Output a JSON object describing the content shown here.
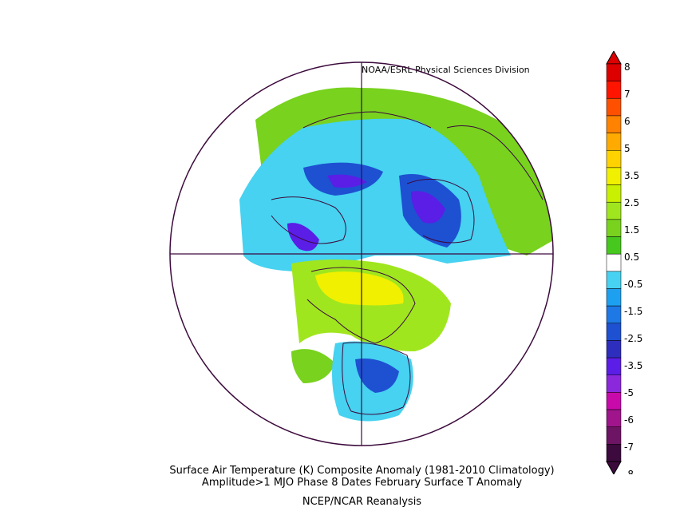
{
  "credit": "NOAA/ESRL Physical Sciences Division",
  "caption": {
    "line1": "Surface Air Temperature (K) Composite Anomaly (1981-2010 Climatology)",
    "line2": "Amplitude>1 MJO Phase 8 Dates February Surface T Anomaly",
    "line3": "NCEP/NCAR Reanalysis"
  },
  "colorbar": {
    "labels": [
      "8",
      "7",
      "6",
      "5",
      "3.5",
      "2.5",
      "1.5",
      "0.5",
      "-0.5",
      "-1.5",
      "-2.5",
      "-3.5",
      "-5",
      "-6",
      "-7",
      "-8"
    ],
    "colors": [
      "#3c0a3c",
      "#6e1464",
      "#a0148c",
      "#c80aaa",
      "#8c28dc",
      "#5a1ee6",
      "#2e2ebe",
      "#1e50d2",
      "#1e78e6",
      "#1ea0f0",
      "#46d2f0",
      "#ffffff",
      "#46c81e",
      "#78d21e",
      "#a0e61e",
      "#c8f000",
      "#f0f000",
      "#ffd200",
      "#ffaa00",
      "#ff8200",
      "#ff5000",
      "#ff1400",
      "#dc0000"
    ]
  },
  "map": {
    "projection": "north-polar-stereographic",
    "variable": "surface air temperature anomaly (K)"
  }
}
